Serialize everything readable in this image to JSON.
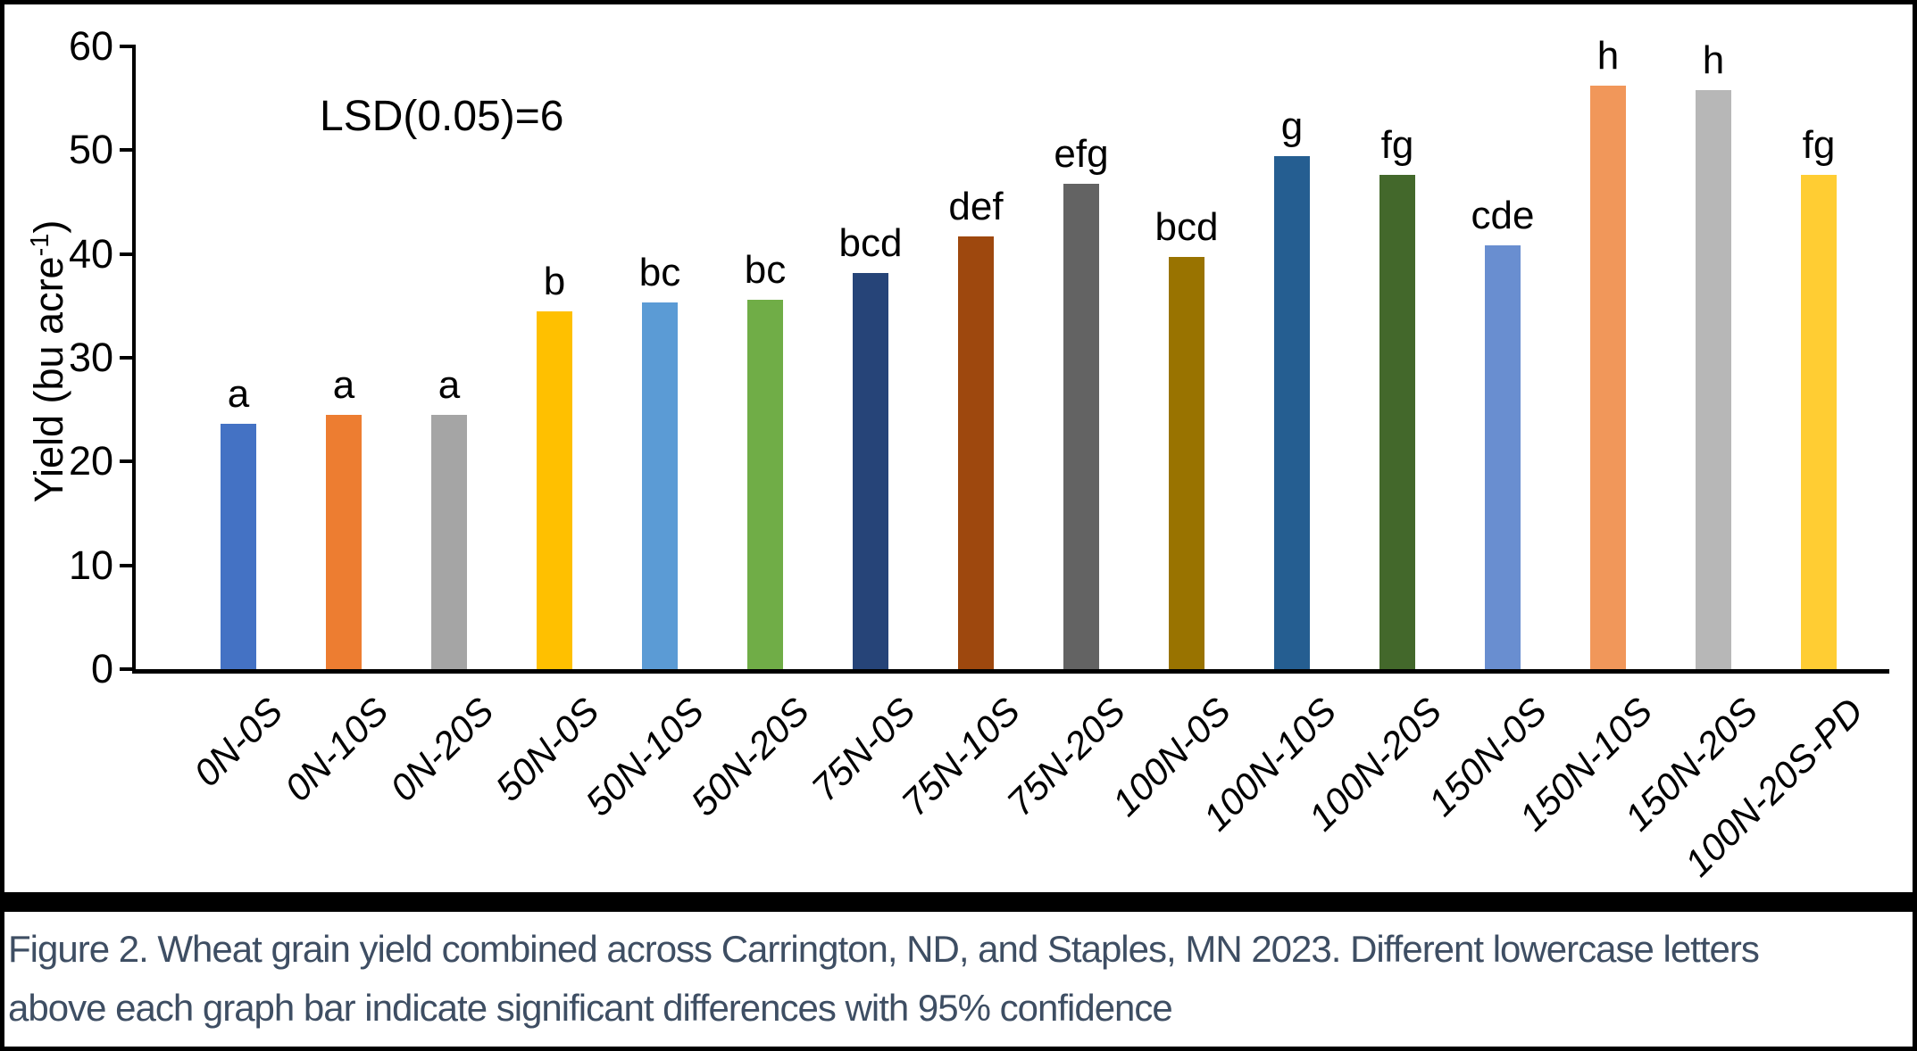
{
  "chart_data": {
    "type": "bar",
    "title": "",
    "xlabel": "",
    "ylabel": "Yield (bu acre⁻¹)",
    "ylabel_parts": {
      "prefix": "Yield (bu acre",
      "sup": "-1",
      "suffix": ")"
    },
    "annotation": "LSD(0.05)=6",
    "categories": [
      "0N-0S",
      "0N-10S",
      "0N-20S",
      "50N-0S",
      "50N-10S",
      "50N-20S",
      "75N-0S",
      "75N-10S",
      "75N-20S",
      "100N-0S",
      "100N-10S",
      "100N-20S",
      "150N-0S",
      "150N-10S",
      "150N-20S",
      "100N-20S-PD"
    ],
    "values": [
      23.6,
      24.5,
      24.5,
      34.5,
      35.3,
      35.6,
      38.2,
      41.7,
      46.8,
      39.7,
      49.4,
      47.6,
      40.8,
      56.2,
      55.8,
      47.6
    ],
    "bar_letters": [
      "a",
      "a",
      "a",
      "b",
      "bc",
      "bc",
      "bcd",
      "def",
      "efg",
      "bcd",
      "g",
      "fg",
      "cde",
      "h",
      "h",
      "fg"
    ],
    "bar_colors": [
      "#4472C4",
      "#ED7D31",
      "#A5A5A5",
      "#FFC000",
      "#5B9BD5",
      "#70AD47",
      "#264478",
      "#9E480E",
      "#636363",
      "#997300",
      "#255E91",
      "#43682B",
      "#698ED0",
      "#F1975A",
      "#B7B7B7",
      "#FFCD33"
    ],
    "ylim": [
      0,
      60
    ],
    "yticks": [
      0,
      10,
      20,
      30,
      40,
      50,
      60
    ],
    "grid": false,
    "legend_position": "none"
  },
  "caption": {
    "lines": [
      "Figure 2. Wheat grain yield combined across Carrington, ND, and Staples, MN 2023. Different lowercase letters",
      "above each graph bar indicate significant differences with 95% confidence"
    ]
  },
  "colors": {
    "caption_text": "#3E4E63",
    "axis": "#000000",
    "frame": "#000000",
    "background": "#FFFFFF"
  }
}
